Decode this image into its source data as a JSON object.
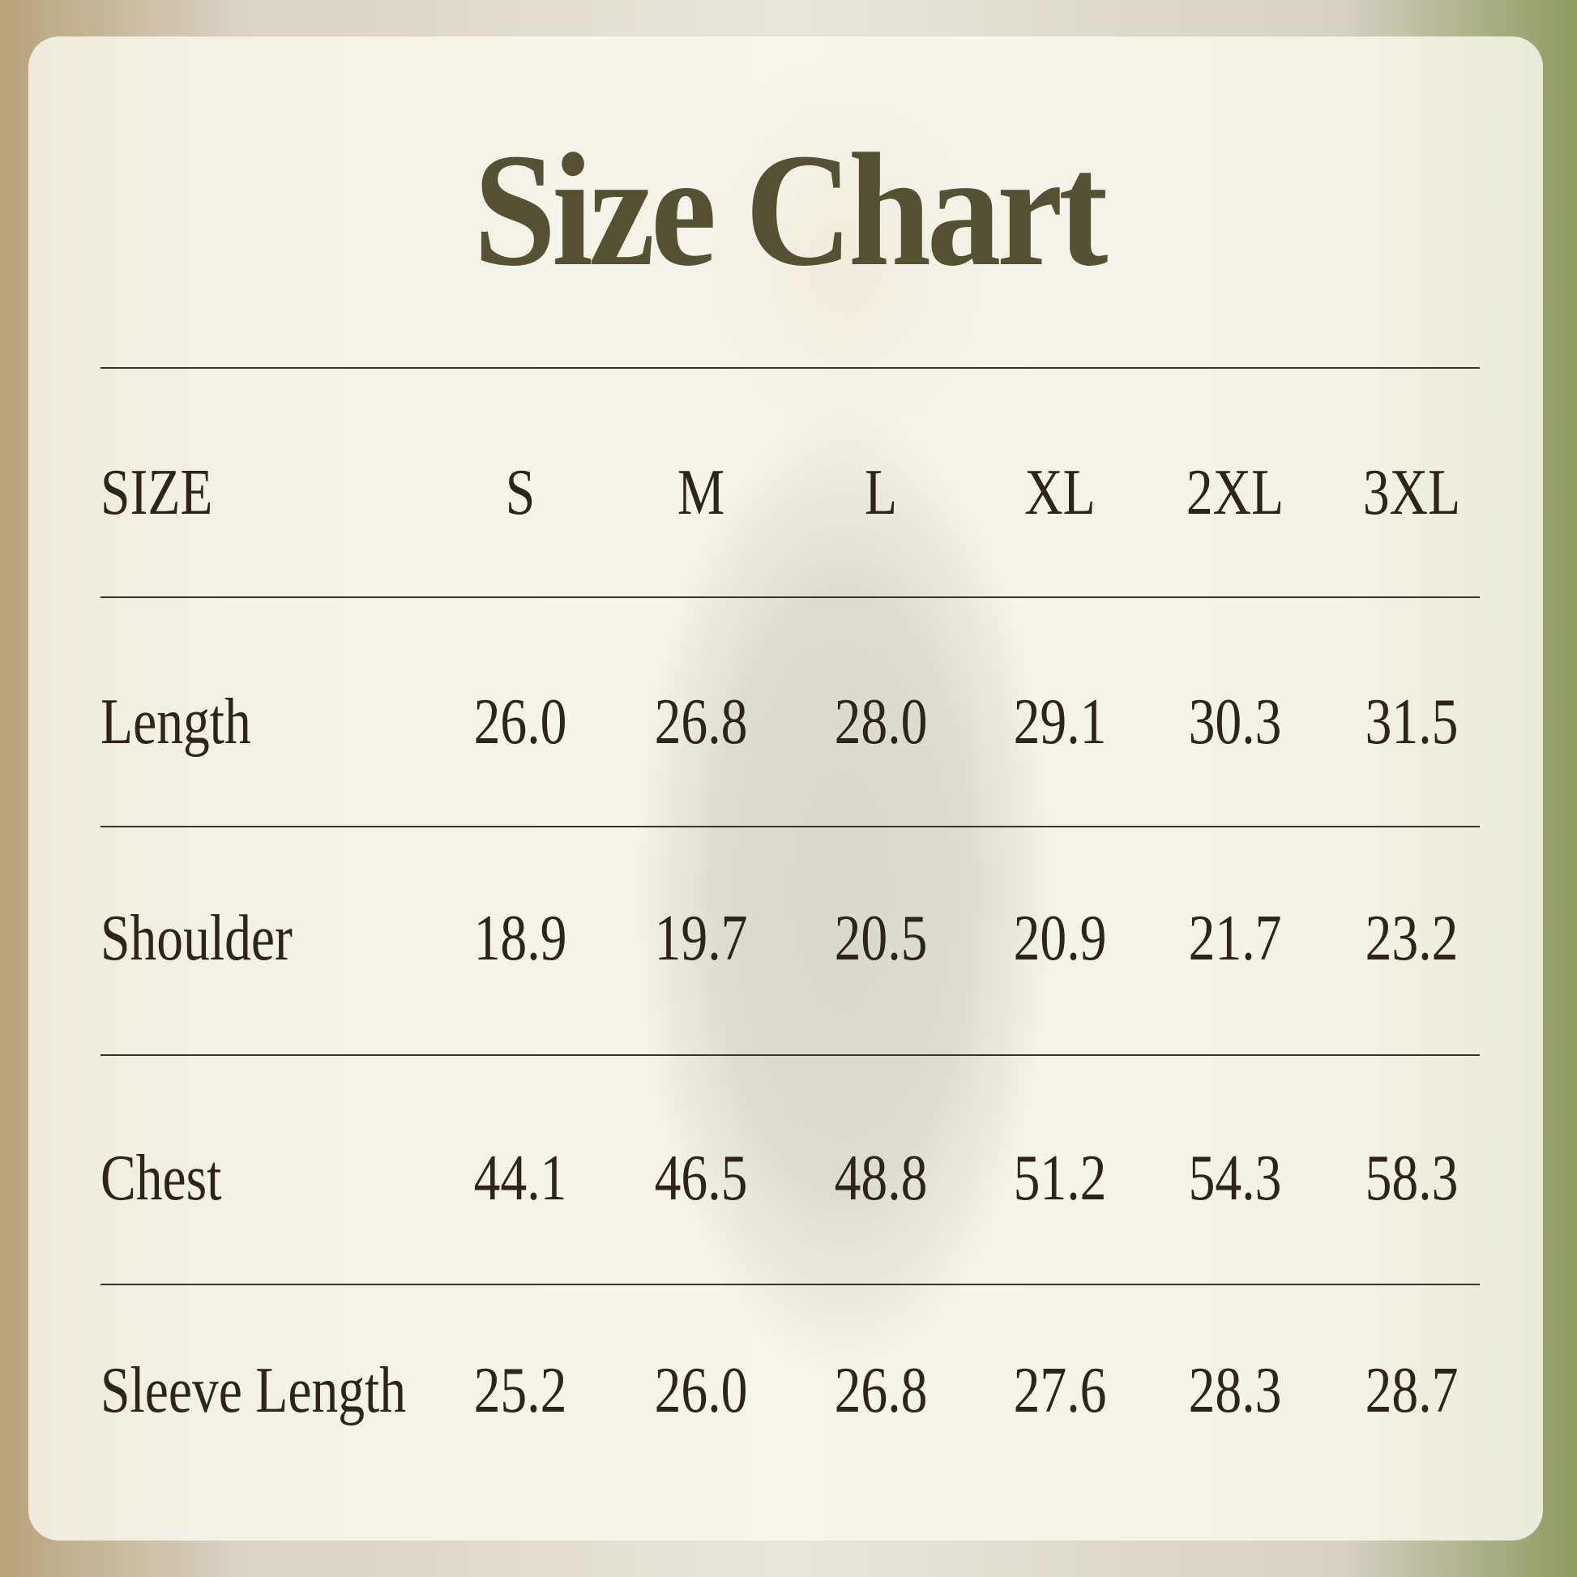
{
  "title": "Size Chart",
  "chart_data": {
    "type": "table",
    "title": "Size Chart",
    "header_label": "SIZE",
    "columns": [
      "S",
      "M",
      "L",
      "XL",
      "2XL",
      "3XL"
    ],
    "rows": [
      {
        "label": "Length",
        "values": [
          "26.0",
          "26.8",
          "28.0",
          "29.1",
          "30.3",
          "31.5"
        ]
      },
      {
        "label": "Shoulder",
        "values": [
          "18.9",
          "19.7",
          "20.5",
          "20.9",
          "21.7",
          "23.2"
        ]
      },
      {
        "label": "Chest",
        "values": [
          "44.1",
          "46.5",
          "48.8",
          "51.2",
          "54.3",
          "58.3"
        ]
      },
      {
        "label": "Sleeve Length",
        "values": [
          "25.2",
          "26.0",
          "26.8",
          "27.6",
          "28.3",
          "28.7"
        ]
      }
    ]
  },
  "colors": {
    "title": "#545232",
    "text": "#2e2418",
    "panel": "#f7f7ec"
  }
}
